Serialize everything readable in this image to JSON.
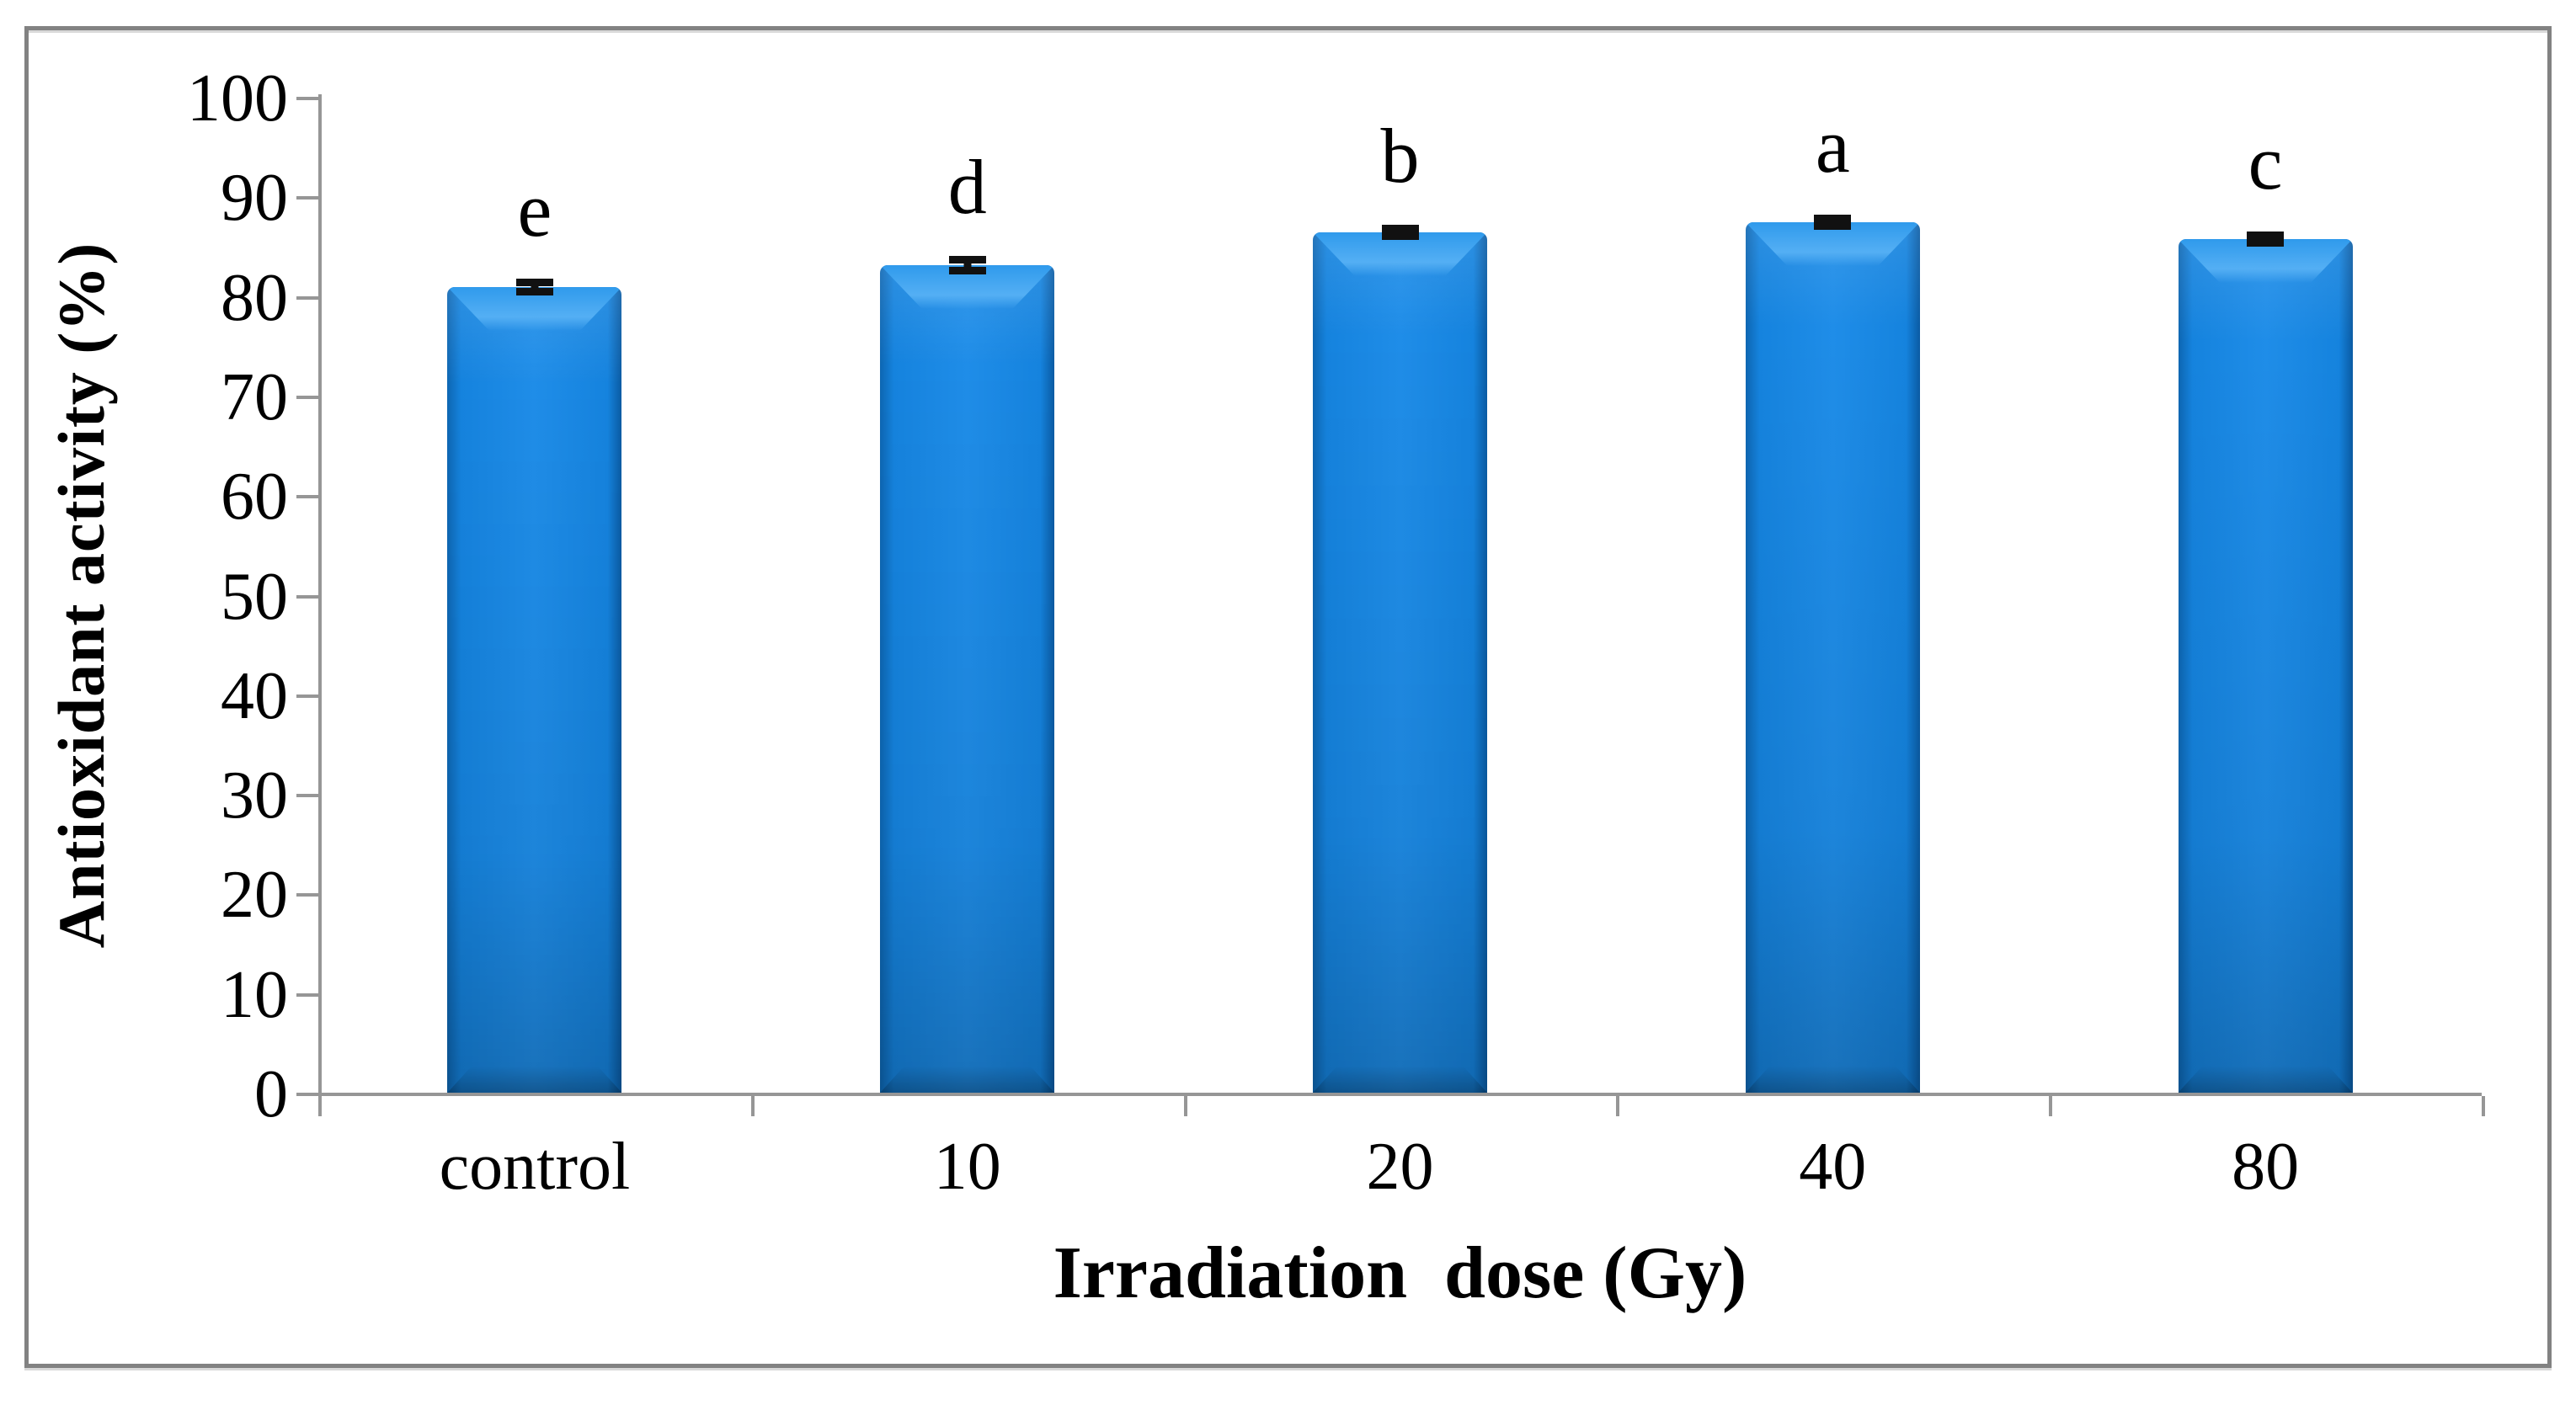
{
  "figure": {
    "kind": "bar chart",
    "background": "#ffffff"
  },
  "chart_data": {
    "type": "bar",
    "title": "",
    "xlabel": "Irradiation  dose (Gy)",
    "ylabel": "Antioxidant activity (%)",
    "categories": [
      "control",
      "10",
      "20",
      "40",
      "80"
    ],
    "values": [
      80.9,
      83.1,
      86.4,
      87.4,
      85.7
    ],
    "errors": [
      0.5,
      0.6,
      0.45,
      0.4,
      0.4
    ],
    "sig_letters": [
      "e",
      "d",
      "b",
      "a",
      "c"
    ],
    "yticks": [
      0,
      10,
      20,
      30,
      40,
      50,
      60,
      70,
      80,
      90,
      100
    ],
    "ylim": [
      0,
      100
    ],
    "grid": false,
    "legend": false,
    "colors": {
      "bar_main": "#1583de",
      "bar_body_light": "#1f8de8",
      "bar_highlight": "#54aff4",
      "bar_edge_left": "#0d66b2",
      "bar_edge_right": "#0a5ba3",
      "axis": "#969696",
      "frame": "#828282",
      "error": "#111111",
      "text": "#000000",
      "background": "#ffffff"
    }
  }
}
